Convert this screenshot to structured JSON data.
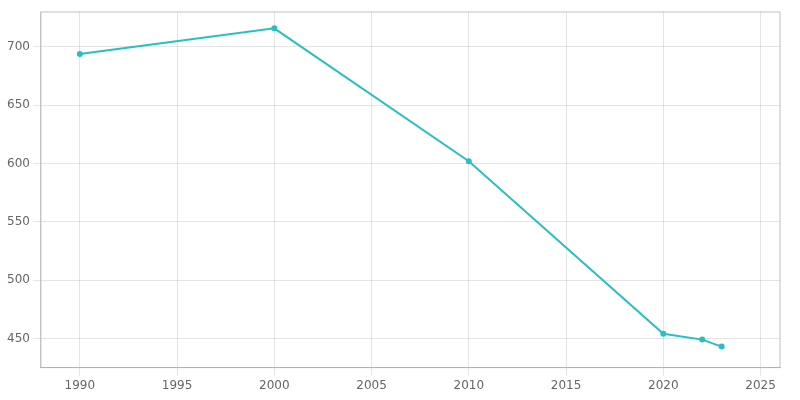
{
  "chart_data": {
    "type": "line",
    "x": [
      1990,
      2000,
      2010,
      2020,
      2022,
      2023
    ],
    "values": [
      694,
      716,
      602,
      454,
      449,
      443
    ],
    "color": "#2abfbf",
    "marker": "point",
    "xlim": [
      1988,
      2026
    ],
    "xticks": [
      1990,
      1995,
      2000,
      2005,
      2010,
      2015,
      2020,
      2025
    ],
    "ylim": [
      425,
      730
    ],
    "yticks": [
      450,
      500,
      550,
      600,
      650,
      700
    ],
    "grid": true
  }
}
